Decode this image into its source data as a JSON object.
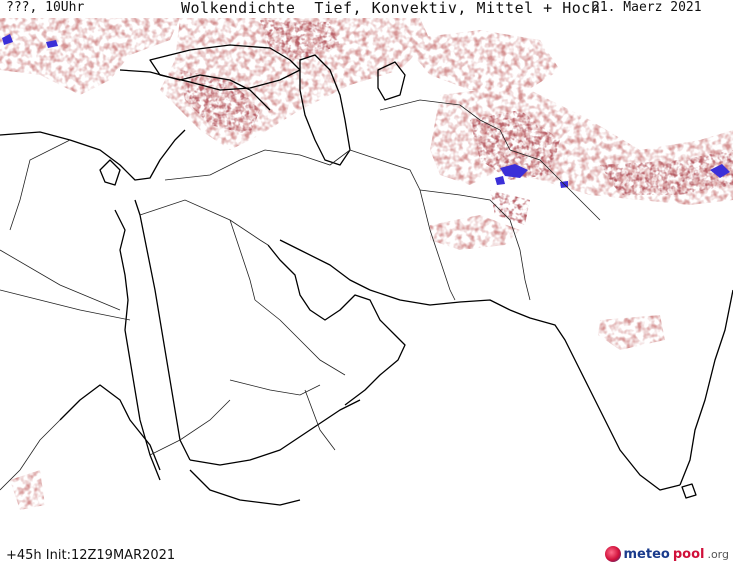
{
  "header": {
    "left": "???, 10Uhr",
    "title": "Wolkendichte  Tief, Konvektiv, Mittel + Hoch",
    "date": "21. Maerz 2021"
  },
  "footer": {
    "run": "+45h Init:12Z19MAR2021",
    "logo_main": "meteo",
    "logo_accent": "pool",
    "logo_tld": ".org"
  },
  "colors": {
    "cloud": "#a84a4a",
    "cloud_dense": "#7a1e24",
    "cloud_core": "#3b2fd8",
    "coast": "#000000",
    "border": "#222222",
    "logo_blue": "#1a3b8c",
    "logo_red": "#d0103a"
  }
}
